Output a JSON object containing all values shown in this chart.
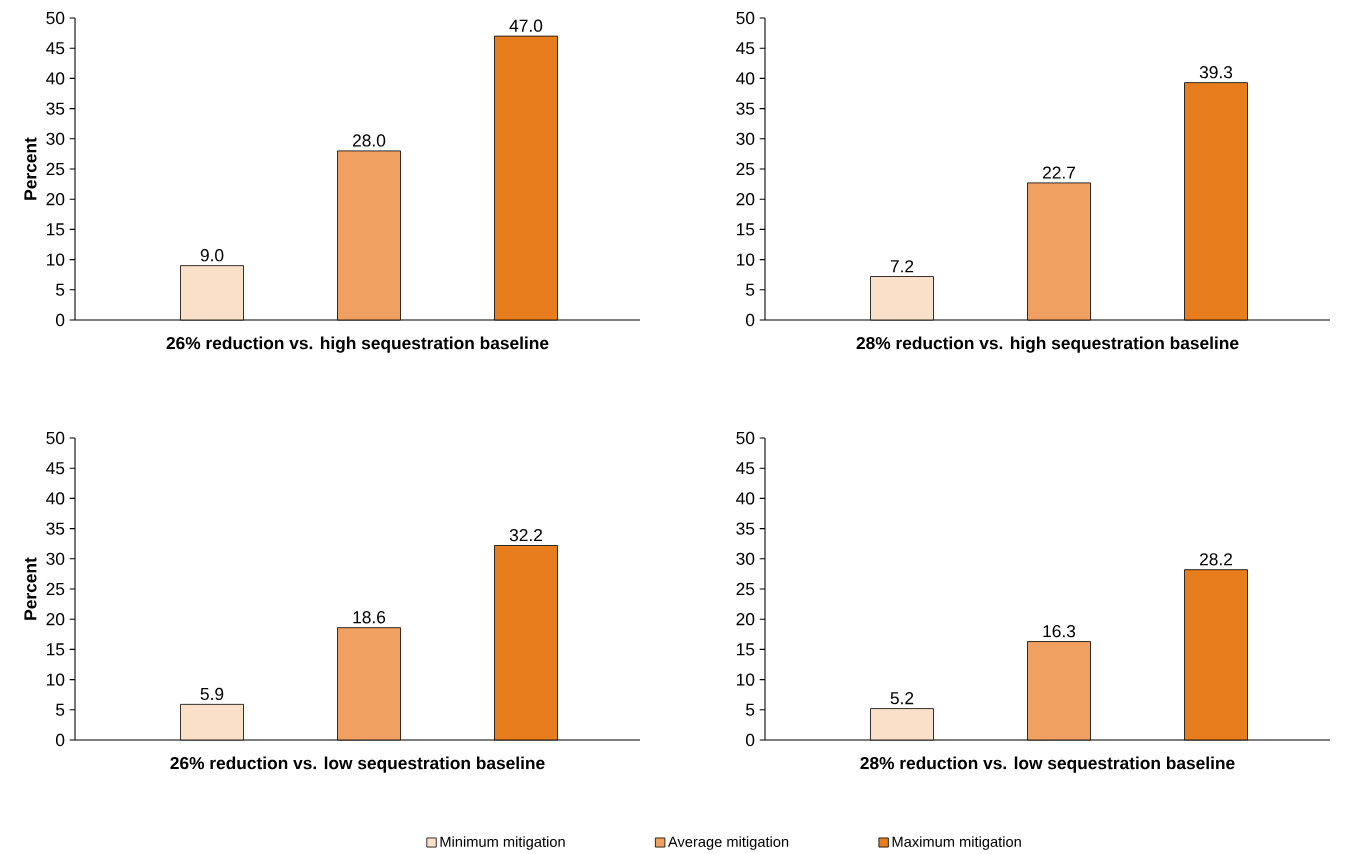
{
  "chart_data": [
    {
      "type": "bar",
      "xlabel": "26% reduction vs. high sequestration baseline",
      "ylabel": "Percent",
      "categories": [
        null
      ],
      "ylim": [
        0,
        50
      ],
      "yticks": [
        0,
        5,
        10,
        15,
        20,
        25,
        30,
        35,
        40,
        45,
        50
      ],
      "series": [
        {
          "color": "#fae0c8",
          "values": [
            9.0
          ],
          "value_labels": [
            "9.0"
          ]
        },
        {
          "color": "#f0a060",
          "values": [
            28.0
          ],
          "value_labels": [
            "28.0"
          ]
        },
        {
          "color": "#e87d1e",
          "values": [
            47.0
          ],
          "value_labels": [
            "47.0"
          ]
        }
      ]
    },
    {
      "type": "bar",
      "xlabel": "28% reduction vs. high sequestration baseline",
      "categories": [
        null
      ],
      "ylim": [
        0,
        50
      ],
      "yticks": [
        0,
        5,
        10,
        15,
        20,
        25,
        30,
        35,
        40,
        45,
        50
      ],
      "series": [
        {
          "color": "#fae0c8",
          "values": [
            7.2
          ],
          "value_labels": [
            "7.2"
          ]
        },
        {
          "color": "#f0a060",
          "values": [
            22.7
          ],
          "value_labels": [
            "22.7"
          ]
        },
        {
          "color": "#e87d1e",
          "values": [
            39.3
          ],
          "value_labels": [
            "39.3"
          ]
        }
      ]
    },
    {
      "type": "bar",
      "xlabel": "26% reduction vs. low sequestration baseline",
      "ylabel": "Percent",
      "categories": [
        null
      ],
      "ylim": [
        0,
        50
      ],
      "yticks": [
        0,
        5,
        10,
        15,
        20,
        25,
        30,
        35,
        40,
        45,
        50
      ],
      "series": [
        {
          "color": "#fae0c8",
          "values": [
            5.9
          ],
          "value_labels": [
            "5.9"
          ]
        },
        {
          "color": "#f0a060",
          "values": [
            18.6
          ],
          "value_labels": [
            "18.6"
          ]
        },
        {
          "color": "#e87d1e",
          "values": [
            32.2
          ],
          "value_labels": [
            "32.2"
          ]
        }
      ]
    },
    {
      "type": "bar",
      "xlabel": "28% reduction vs. low sequestration baseline",
      "categories": [
        null
      ],
      "ylim": [
        0,
        50
      ],
      "yticks": [
        0,
        5,
        10,
        15,
        20,
        25,
        30,
        35,
        40,
        45,
        50
      ],
      "legend": "bottom",
      "series": [
        {
          "name": "Minimum mitigation",
          "color": "#fae0c8",
          "values": [
            5.2
          ],
          "value_labels": [
            "5.2"
          ]
        },
        {
          "name": "Average mitigation",
          "color": "#f0a060",
          "values": [
            16.3
          ],
          "value_labels": [
            "16.3"
          ]
        },
        {
          "name": "Maximum mitigation",
          "color": "#e87d1e",
          "values": [
            28.2
          ],
          "value_labels": [
            "28.2"
          ]
        }
      ]
    }
  ]
}
